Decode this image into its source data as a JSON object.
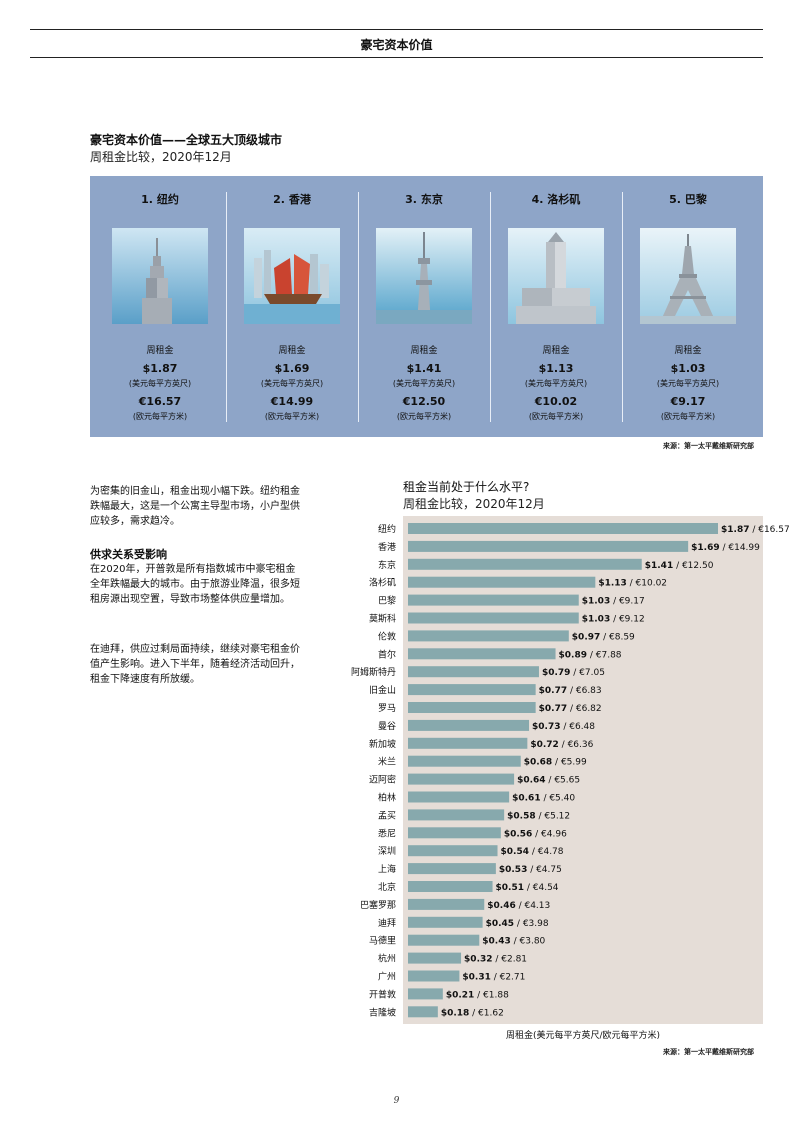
{
  "header": {
    "title": "豪宅资本价值"
  },
  "section": {
    "title": "豪宅资本价值——全球五大顶级城市",
    "subtitle": "周租金比较，2020年12月",
    "rent_label": "周租金",
    "unit_usd": "(美元每平方英尺)",
    "unit_eur": "(欧元每平方米)",
    "cities": [
      {
        "rank_name": "1. 纽约",
        "usd": "$1.87",
        "eur": "€16.57",
        "icon": "empire-state-building-icon"
      },
      {
        "rank_name": "2. 香港",
        "usd": "$1.69",
        "eur": "€14.99",
        "icon": "junk-boat-icon"
      },
      {
        "rank_name": "3. 东京",
        "usd": "$1.41",
        "eur": "€12.50",
        "icon": "tokyo-skytree-icon"
      },
      {
        "rank_name": "4. 洛杉矶",
        "usd": "$1.13",
        "eur": "€10.02",
        "icon": "la-city-hall-icon"
      },
      {
        "rank_name": "5. 巴黎",
        "usd": "$1.03",
        "eur": "€9.17",
        "icon": "eiffel-tower-icon"
      }
    ],
    "source": "来源：第一太平戴维斯研究部"
  },
  "body": {
    "para1": "为密集的旧金山，租金出现小幅下跌。纽约租金跌幅最大，这是一个公寓主导型市场，小户型供应较多，需求趋冷。",
    "subhead": "供求关系受影响",
    "para2": "在2020年，开普敦是所有指数城市中豪宅租金全年跌幅最大的城市。由于旅游业降温，很多短租房源出现空置，导致市场整体供应量增加。",
    "para3": "在迪拜，供应过剩局面持续，继续对豪宅租金价值产生影响。进入下半年，随着经济活动回升，租金下降速度有所放缓。"
  },
  "chart_data": {
    "type": "bar",
    "orientation": "horizontal",
    "title": "租金当前处于什么水平?",
    "subtitle": "周租金比较，2020年12月",
    "xlabel": "周租金(美元每平方英尺/欧元每平方米)",
    "categories": [
      "纽约",
      "香港",
      "东京",
      "洛杉矶",
      "巴黎",
      "莫斯科",
      "伦敦",
      "首尔",
      "阿姆斯特丹",
      "旧金山",
      "罗马",
      "曼谷",
      "新加坡",
      "米兰",
      "迈阿密",
      "柏林",
      "孟买",
      "悉尼",
      "深圳",
      "上海",
      "北京",
      "巴塞罗那",
      "迪拜",
      "马德里",
      "杭州",
      "广州",
      "开普敦",
      "吉隆坡"
    ],
    "values": [
      1.87,
      1.69,
      1.41,
      1.13,
      1.03,
      1.03,
      0.97,
      0.89,
      0.79,
      0.77,
      0.77,
      0.73,
      0.72,
      0.68,
      0.64,
      0.61,
      0.58,
      0.56,
      0.54,
      0.53,
      0.51,
      0.46,
      0.45,
      0.43,
      0.32,
      0.31,
      0.21,
      0.18
    ],
    "usd_labels": [
      "$1.87",
      "$1.69",
      "$1.41",
      "$1.13",
      "$1.03",
      "$1.03",
      "$0.97",
      "$0.89",
      "$0.79",
      "$0.77",
      "$0.77",
      "$0.73",
      "$0.72",
      "$0.68",
      "$0.64",
      "$0.61",
      "$0.58",
      "$0.56",
      "$0.54",
      "$0.53",
      "$0.51",
      "$0.46",
      "$0.45",
      "$0.43",
      "$0.32",
      "$0.31",
      "$0.21",
      "$0.18"
    ],
    "eur_labels": [
      "€16.57",
      "€14.99",
      "€12.50",
      "€10.02",
      "€9.17",
      "€9.12",
      "€8.59",
      "€7.88",
      "€7.05",
      "€6.83",
      "€6.82",
      "€6.48",
      "€6.36",
      "€5.99",
      "€5.65",
      "€5.40",
      "€5.12",
      "€4.96",
      "€4.78",
      "€4.75",
      "€4.54",
      "€4.13",
      "€3.98",
      "€3.80",
      "€2.81",
      "€2.71",
      "€1.88",
      "€1.62"
    ],
    "bar_color": "#87a9ad",
    "background_color": "#e5ddd7",
    "source": "来源：第一太平戴维斯研究部"
  },
  "page_number": "9"
}
